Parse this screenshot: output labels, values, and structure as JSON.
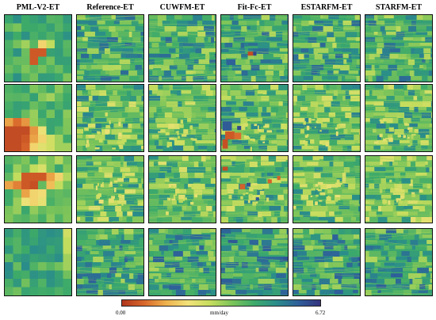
{
  "columns": [
    "PML-V2-ET",
    "Reference-ET",
    "CUWFM-ET",
    "Fit-Fc-ET",
    "ESTARFM-ET",
    "STARFM-ET"
  ],
  "rows": 4,
  "colorbar": {
    "min_label": "0.00",
    "max_label": "6.72",
    "unit": "mm/day",
    "stops": [
      "#b0361c",
      "#d8672b",
      "#eeb24e",
      "#f2e27a",
      "#c6dd5e",
      "#7cc45a",
      "#3daa6a",
      "#2a8d8a",
      "#2e5f9a",
      "#34337e"
    ]
  }
}
